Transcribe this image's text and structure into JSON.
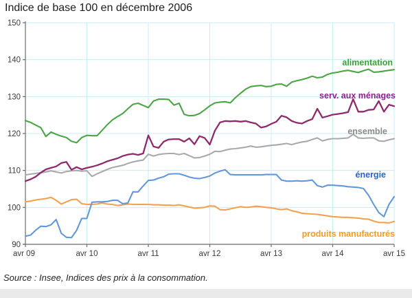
{
  "title": "Indice de base 100 en décembre 2006",
  "source": "Source : Insee, Indices des prix à la consommation.",
  "chart_data": {
    "type": "line",
    "title": "Indice de base 100 en décembre 2006",
    "x_axis": {
      "tick_labels": [
        "avr 09",
        "avr 10",
        "avr 11",
        "avr 12",
        "avr 13",
        "avr 14",
        "avr 15"
      ],
      "unit": "month",
      "points_per_tick": 12,
      "n_points": 73
    },
    "y_axis": {
      "ticks": [
        90,
        100,
        110,
        120,
        130,
        140,
        150
      ],
      "ylim": [
        90,
        150
      ]
    },
    "grid": true,
    "colors": {
      "gridline": "#c9ecf5",
      "axis": "#6b6b6b",
      "tick_text": "#3a3a3a",
      "title_text": "#1c1c1c"
    },
    "series": [
      {
        "id": "ensemble",
        "label": "ensemble",
        "color": "#a9a9a9",
        "label_color": "#8a8a8a",
        "values": [
          108.8,
          109.0,
          109.2,
          109.4,
          109.6,
          109.9,
          109.6,
          109.3,
          109.7,
          109.9,
          110.0,
          109.8,
          109.9,
          108.4,
          109.1,
          109.7,
          110.3,
          110.8,
          111.1,
          111.4,
          111.9,
          112.3,
          112.6,
          112.8,
          114.4,
          113.9,
          114.3,
          114.5,
          114.6,
          114.6,
          114.3,
          114.6,
          114.0,
          113.4,
          113.5,
          113.9,
          114.4,
          115.2,
          115.1,
          115.5,
          115.8,
          115.9,
          116.1,
          116.3,
          116.6,
          116.3,
          116.4,
          116.6,
          116.8,
          116.9,
          117.1,
          117.3,
          117.0,
          117.4,
          117.7,
          117.9,
          118.4,
          118.8,
          118.0,
          118.4,
          118.6,
          118.6,
          118.7,
          118.8,
          119.8,
          118.8,
          118.7,
          118.8,
          118.8,
          118.0,
          117.9,
          118.3,
          118.6
        ]
      },
      {
        "id": "produits_manufactures",
        "label": "produits manufacturés",
        "color": "#f2a14f",
        "label_color": "#f59b1e",
        "values": [
          101.5,
          101.7,
          102.0,
          102.2,
          102.4,
          102.7,
          101.9,
          100.9,
          101.5,
          102.1,
          102.2,
          101.0,
          100.8,
          100.8,
          100.9,
          101.2,
          100.9,
          100.8,
          100.5,
          100.7,
          100.9,
          100.8,
          100.8,
          100.8,
          100.8,
          100.7,
          100.7,
          100.6,
          100.6,
          100.5,
          100.7,
          100.4,
          100.1,
          99.8,
          99.9,
          100.0,
          100.4,
          100.3,
          99.4,
          99.3,
          99.6,
          99.9,
          100.2,
          100.0,
          100.1,
          100.3,
          100.2,
          100.0,
          99.9,
          99.6,
          99.4,
          99.6,
          99.1,
          98.8,
          98.4,
          98.3,
          98.2,
          98.1,
          97.9,
          97.7,
          97.5,
          97.4,
          97.3,
          97.3,
          97.2,
          97.1,
          96.9,
          96.8,
          96.3,
          95.9,
          95.9,
          95.8,
          96.2
        ]
      },
      {
        "id": "energie",
        "label": "énergie",
        "color": "#6497d8",
        "label_color": "#2f5fcc",
        "values": [
          92.2,
          92.5,
          93.8,
          94.9,
          94.8,
          95.3,
          96.7,
          93.0,
          91.9,
          91.8,
          93.8,
          97.0,
          97.0,
          101.4,
          101.5,
          101.5,
          101.6,
          101.9,
          101.9,
          101.0,
          101.2,
          104.2,
          104.2,
          105.8,
          107.3,
          107.4,
          107.9,
          108.3,
          109.0,
          109.1,
          109.1,
          108.7,
          108.2,
          107.9,
          107.8,
          108.1,
          108.5,
          109.3,
          109.8,
          110.2,
          108.9,
          108.8,
          108.8,
          108.8,
          108.8,
          108.8,
          108.8,
          108.9,
          108.9,
          108.9,
          107.4,
          107.1,
          107.1,
          107.2,
          107.1,
          107.2,
          107.4,
          105.9,
          105.5,
          106.0,
          106.0,
          105.9,
          105.8,
          105.6,
          105.5,
          105.4,
          105.1,
          103.3,
          100.8,
          98.6,
          97.5,
          100.8,
          102.9
        ]
      },
      {
        "id": "serv_aux_menages",
        "label": "serv. aux ménages",
        "color": "#8e2a6c",
        "label_color": "#8f1f8f",
        "values": [
          107.1,
          107.6,
          108.3,
          109.4,
          110.3,
          110.7,
          111.1,
          112.0,
          112.3,
          110.2,
          110.9,
          110.3,
          110.7,
          111.0,
          111.4,
          111.9,
          112.5,
          112.9,
          113.3,
          113.9,
          114.3,
          114.5,
          114.2,
          114.6,
          119.5,
          116.5,
          116.1,
          117.8,
          118.4,
          118.5,
          118.5,
          117.8,
          118.7,
          117.1,
          119.3,
          118.8,
          117.0,
          120.8,
          123.0,
          123.4,
          123.3,
          123.4,
          123.2,
          123.4,
          123.0,
          122.7,
          121.6,
          121.9,
          122.6,
          123.2,
          124.8,
          124.4,
          123.4,
          122.9,
          122.7,
          123.4,
          123.9,
          126.7,
          124.3,
          124.7,
          125.1,
          125.3,
          125.5,
          125.8,
          129.3,
          125.9,
          125.9,
          126.4,
          126.5,
          128.8,
          125.9,
          127.8,
          127.4
        ]
      },
      {
        "id": "alimentation",
        "label": "alimentation",
        "color": "#4ba446",
        "label_color": "#3ca03c",
        "values": [
          123.5,
          123.0,
          122.3,
          121.6,
          119.2,
          120.4,
          119.8,
          119.3,
          118.9,
          117.9,
          117.5,
          118.9,
          119.5,
          119.4,
          119.4,
          120.9,
          122.4,
          123.7,
          124.6,
          125.4,
          126.7,
          127.9,
          128.2,
          127.6,
          127.0,
          128.8,
          129.3,
          129.3,
          129.2,
          127.7,
          128.2,
          125.2,
          124.8,
          124.9,
          125.4,
          126.4,
          127.5,
          128.3,
          128.5,
          128.6,
          128.3,
          129.7,
          130.9,
          132.0,
          132.7,
          132.9,
          133.0,
          132.7,
          132.8,
          133.3,
          133.4,
          132.8,
          133.9,
          134.3,
          134.6,
          135.0,
          135.5,
          135.1,
          135.3,
          136.0,
          136.4,
          136.6,
          136.9,
          137.1,
          136.8,
          136.5,
          137.0,
          137.4,
          136.6,
          136.7,
          136.9,
          137.1,
          137.3
        ]
      }
    ]
  }
}
